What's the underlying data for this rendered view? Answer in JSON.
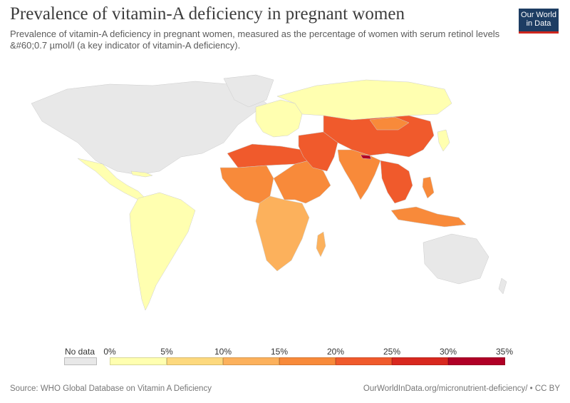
{
  "header": {
    "title": "Prevalence of vitamin-A deficiency in pregnant women",
    "subtitle": "Prevalence of vitamin-A deficiency in pregnant women, measured as the percentage of women with serum retinol levels &#60;0.7 µmol/l (a key indicator of vitamin-A deficiency).",
    "logo_line1": "Our World",
    "logo_line2": "in Data"
  },
  "colors": {
    "no_data": "#e8e8e8",
    "bins": [
      "#ffffb0",
      "#fdd97e",
      "#fcb15c",
      "#f88a3a",
      "#f05a2c",
      "#d8281f",
      "#b00026"
    ]
  },
  "legend": {
    "no_data_label": "No data",
    "ticks": [
      "0%",
      "5%",
      "10%",
      "15%",
      "20%",
      "25%",
      "30%",
      "35%"
    ]
  },
  "footer": {
    "source": "Source: WHO Global Database on Vitamin A Deficiency",
    "url": "OurWorldInData.org/micronutrient-deficiency/ • CC BY"
  }
}
